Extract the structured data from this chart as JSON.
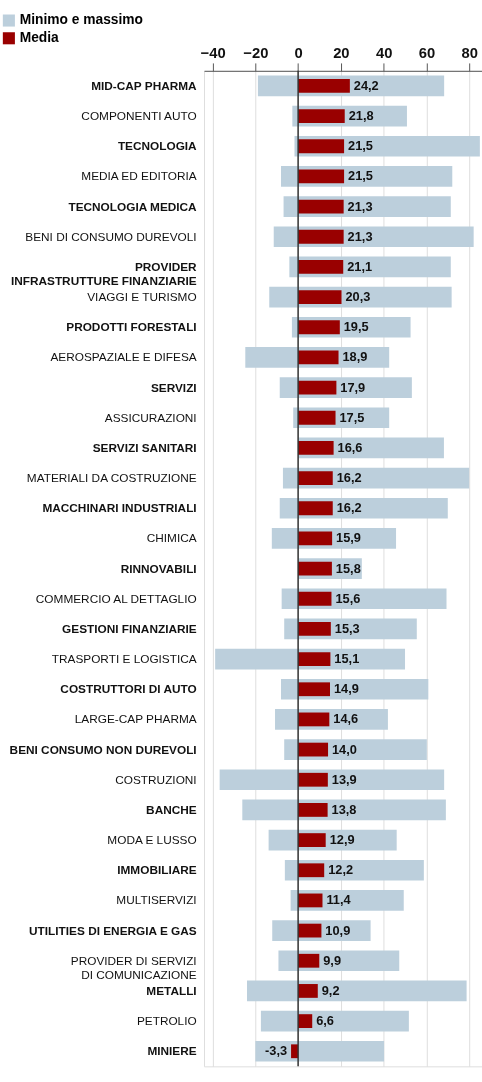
{
  "chart_data": {
    "type": "bar",
    "orientation": "horizontal",
    "categories": [
      "MID-CAP PHARMA",
      "COMPONENTI AUTO",
      "TECNOLOGIA",
      "MEDIA ED EDITORIA",
      "TECNOLOGIA MEDICA",
      "BENI DI CONSUMO DUREVOLI",
      "PROVIDER\nINFRASTRUTTURE FINANZIARIE",
      "VIAGGI E TURISMO",
      "PRODOTTI FORESTALI",
      "AEROSPAZIALE E DIFESA",
      "SERVIZI",
      "ASSICURAZIONI",
      "SERVIZI SANITARI",
      "MATERIALI DA COSTRUZIONE",
      "MACCHINARI INDUSTRIALI",
      "CHIMICA",
      "RINNOVABILI",
      "COMMERCIO AL DETTAGLIO",
      "GESTIONI FINANZIARIE",
      "TRASPORTI E LOGISTICA",
      "COSTRUTTORI DI AUTO",
      "LARGE-CAP PHARMA",
      "BENI CONSUMO NON DUREVOLI",
      "COSTRUZIONI",
      "BANCHE",
      "MODA E LUSSO",
      "IMMOBILIARE",
      "MULTISERVIZI",
      "UTILITIES DI ENERGIA E GAS",
      "PROVIDER DI SERVIZI\nDI COMUNICAZIONE",
      "METALLI",
      "PETROLIO",
      "MINIERE"
    ],
    "series": [
      {
        "name": "Minimo e massimo",
        "color": "#bccfdc",
        "base": [
          -18.8,
          -2.7,
          -1.7,
          -8.0,
          -6.8,
          -11.4,
          -4.1,
          -13.5,
          -2.9,
          -24.7,
          -8.6,
          -2.3,
          0,
          -7.1,
          -8.6,
          -12.3,
          0,
          -7.7,
          -6.5,
          -38.8,
          -8.0,
          -10.8,
          -6.5,
          -36.7,
          -26.1,
          -13.8,
          -6.2,
          -3.5,
          -12.1,
          -9.2,
          -23.9,
          -17.4,
          -20.0
        ],
        "values": [
          87.1,
          53.6,
          86.7,
          80.1,
          78.2,
          93.5,
          75.5,
          85.3,
          55.5,
          67.3,
          61.8,
          44.9,
          68.2,
          87.1,
          78.6,
          58.1,
          29.8,
          77.1,
          62.0,
          88.8,
          68.9,
          52.8,
          66.7,
          105.0,
          95.2,
          59.9,
          65.0,
          52.9,
          46.0,
          56.5,
          102.7,
          69.2,
          60.2
        ]
      },
      {
        "name": "Media",
        "color": "#990000",
        "values": [
          24.2,
          21.8,
          21.5,
          21.5,
          21.3,
          21.3,
          21.1,
          20.3,
          19.5,
          18.9,
          17.9,
          17.5,
          16.6,
          16.2,
          16.2,
          15.9,
          15.8,
          15.6,
          15.3,
          15.1,
          14.9,
          14.6,
          14.0,
          13.9,
          13.8,
          12.9,
          12.2,
          11.4,
          10.9,
          9.9,
          9.2,
          6.6,
          -3.3
        ],
        "value_labels": [
          "24,2",
          "21,8",
          "21,5",
          "21,5",
          "21,3",
          "21,3",
          "21,1",
          "20,3",
          "19,5",
          "18,9",
          "17,9",
          "17,5",
          "16,6",
          "16,2",
          "16,2",
          "15,9",
          "15,8",
          "15,6",
          "15,3",
          "15,1",
          "14,9",
          "14,6",
          "14,0",
          "13,9",
          "13,8",
          "12,9",
          "12,2",
          "11,4",
          "10,9",
          "9,9",
          "9,2",
          "6,6",
          "-3,3"
        ]
      }
    ],
    "xlim": [
      -44,
      86
    ],
    "xticks": [
      -40,
      -20,
      0,
      20,
      40,
      60,
      80
    ],
    "ref_lines": [
      {
        "axis": "x",
        "value": 0,
        "color": "#333333"
      }
    ],
    "grid": "x",
    "legend": "top left"
  }
}
